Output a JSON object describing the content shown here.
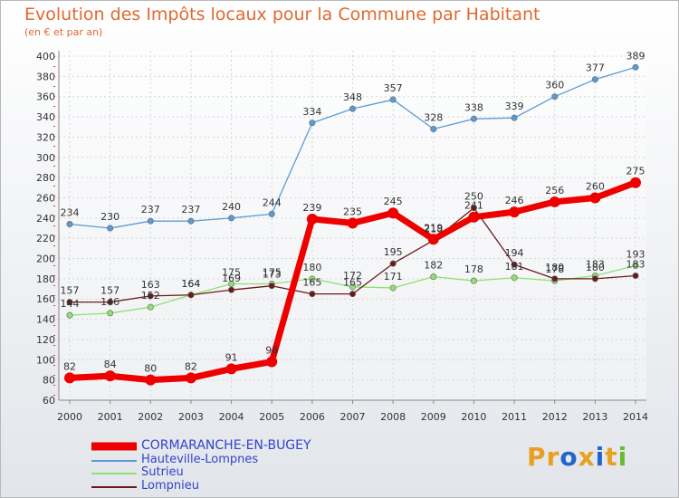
{
  "chart_data": {
    "type": "line",
    "title": "Evolution des Impôts locaux pour la Commune par Habitant",
    "subtitle": "(en € et par an)",
    "x": [
      "2000",
      "2001",
      "2002",
      "2003",
      "2004",
      "2005",
      "2006",
      "2007",
      "2008",
      "2009",
      "2010",
      "2011",
      "2012",
      "2013",
      "2014"
    ],
    "ylim": [
      60,
      400
    ],
    "yticks": [
      60,
      80,
      100,
      120,
      140,
      160,
      180,
      200,
      220,
      240,
      260,
      280,
      300,
      320,
      340,
      360,
      380,
      400
    ],
    "grid": true,
    "legend_position": "bottom-left",
    "series": [
      {
        "name": "CORMARANCHE-EN-BUGEY",
        "color": "#ee0000",
        "values": [
          82,
          84,
          80,
          82,
          91,
          98,
          239,
          235,
          245,
          219,
          241,
          246,
          256,
          260,
          275
        ]
      },
      {
        "name": "Hauteville-Lompnes",
        "color": "#5b9bd5",
        "values": [
          234,
          230,
          237,
          237,
          240,
          244,
          334,
          348,
          357,
          328,
          338,
          339,
          360,
          377,
          389
        ]
      },
      {
        "name": "Sutrieu",
        "color": "#90e070",
        "values": [
          144,
          146,
          152,
          164,
          175,
          175,
          180,
          172,
          171,
          182,
          178,
          181,
          178,
          183,
          193
        ]
      },
      {
        "name": "Lompnieu",
        "color": "#6b1a1a",
        "values": [
          157,
          157,
          163,
          164,
          169,
          173,
          165,
          165,
          195,
          218,
          250,
          194,
          180,
          180,
          183
        ]
      }
    ]
  },
  "brand": {
    "p": "Pr",
    "o": "o",
    "x": "x",
    "i": "i",
    "t": "t",
    "i2": "i"
  }
}
